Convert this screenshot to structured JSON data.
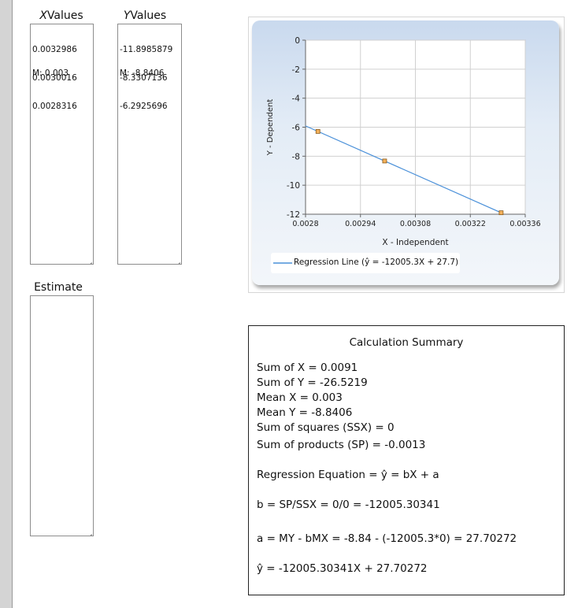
{
  "x_column": {
    "header_var": "X",
    "header_word": "Values",
    "values": [
      "0.0032986",
      "0.0030016",
      "0.0028316"
    ],
    "mean": "M: 0.003"
  },
  "y_column": {
    "header_var": "Y",
    "header_word": "Values",
    "values": [
      "-11.8985879",
      "-8.3307136",
      "-6.2925696"
    ],
    "mean": "M: -8.8406"
  },
  "estimate": {
    "label": "Estimate",
    "value": ""
  },
  "chart_data": {
    "type": "scatter",
    "xlabel": "X - Independent",
    "ylabel": "Y - Dependent",
    "xlim": [
      0.0028,
      0.00336
    ],
    "ylim": [
      -12,
      0
    ],
    "x_ticks": [
      "0.0028",
      "0.00294",
      "0.00308",
      "0.00322",
      "0.00336"
    ],
    "y_ticks": [
      "0",
      "-2",
      "-4",
      "-6",
      "-8",
      "-10",
      "-12"
    ],
    "grid": true,
    "legend_position": "bottom-left",
    "points": [
      {
        "x": 0.0032986,
        "y": -11.8985879
      },
      {
        "x": 0.0030016,
        "y": -8.3307136
      },
      {
        "x": 0.0028316,
        "y": -6.2925696
      }
    ],
    "regression": {
      "name": "Regression Line (ŷ = -12005.3X + 27.7)",
      "slope": -12005.30341,
      "intercept": 27.70272
    },
    "colors": {
      "line": "#4a90d9",
      "marker_fill": "#f3b15c",
      "marker_stroke": "#8a5a1a"
    }
  },
  "summary": {
    "title": "Calculation Summary",
    "sum_x": "Sum of X = 0.0091",
    "sum_y": "Sum of Y = -26.5219",
    "mean_x": "Mean X = 0.003",
    "mean_y": "Mean Y = -8.8406",
    "ss_x": "Sum of squares (SSX) = 0",
    "sp": "Sum of products (SP) = -0.0013",
    "regression_eq": "Regression Equation = ŷ = bX + a",
    "b_eq": "b = SP/SSX = 0/0 = -12005.30341",
    "a_eq": "a = MY - bMX = -8.84 - (-12005.3*0) = 27.70272",
    "y_hat": "ŷ = -12005.30341X + 27.70272"
  }
}
